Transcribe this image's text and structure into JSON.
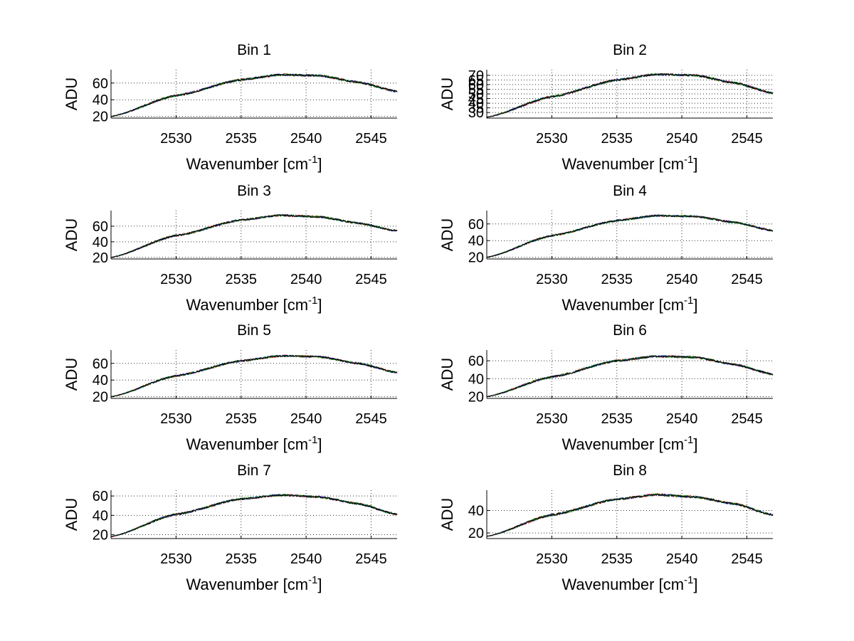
{
  "figure": {
    "background": "#ffffff"
  },
  "chart_data": [
    {
      "type": "line",
      "title": "Bin 1",
      "xlabel": "Wavenumber [cm",
      "xlabel_sup": "-1",
      "xlabel_end": "]",
      "ylabel": "ADU",
      "xlim": [
        2525,
        2547
      ],
      "ylim": [
        18,
        76
      ],
      "xticks": [
        2530,
        2535,
        2540,
        2545
      ],
      "xtick_labels": [
        "2530",
        "2535",
        "2540",
        "2545"
      ],
      "yticks": [
        20,
        40,
        60
      ],
      "ytick_labels": [
        "20",
        "40",
        "60"
      ],
      "grid": true,
      "series": [
        {
          "name": "red",
          "color": "#ff0000",
          "noise": 1.4,
          "seed": 11
        },
        {
          "name": "blue",
          "color": "#0000ff",
          "noise": 1.2,
          "seed": 12
        },
        {
          "name": "green",
          "color": "#00a000",
          "noise": 1.3,
          "seed": 13
        },
        {
          "name": "black",
          "color": "#000000",
          "noise": 1.1,
          "seed": 14
        }
      ],
      "trend": {
        "x": [
          2525,
          2530,
          2535,
          2538,
          2541,
          2544,
          2547
        ],
        "y": [
          20,
          45,
          64,
          70,
          69,
          61,
          50
        ]
      }
    },
    {
      "type": "line",
      "title": "Bin 2",
      "xlabel": "Wavenumber [cm",
      "xlabel_sup": "-1",
      "xlabel_end": "]",
      "ylabel": "ADU",
      "xlim": [
        2525,
        2547
      ],
      "ylim": [
        24,
        76
      ],
      "xticks": [
        2530,
        2535,
        2540,
        2545
      ],
      "xtick_labels": [
        "2530",
        "2535",
        "2540",
        "2545"
      ],
      "yticks": [
        30,
        35,
        40,
        45,
        50,
        55,
        60,
        65,
        70
      ],
      "ytick_labels": [
        "30",
        "35",
        "40",
        "45",
        "50",
        "55",
        "60",
        "65",
        "70"
      ],
      "grid": true,
      "series": [
        {
          "name": "red",
          "color": "#ff0000",
          "noise": 1.3,
          "seed": 21
        },
        {
          "name": "blue",
          "color": "#0000ff",
          "noise": 1.1,
          "seed": 22
        },
        {
          "name": "green",
          "color": "#00a000",
          "noise": 1.2,
          "seed": 23
        },
        {
          "name": "black",
          "color": "#000000",
          "noise": 1.0,
          "seed": 24
        }
      ],
      "trend": {
        "x": [
          2525,
          2530,
          2535,
          2538,
          2541,
          2544,
          2547
        ],
        "y": [
          25,
          47,
          65,
          71,
          70,
          62,
          51
        ]
      }
    },
    {
      "type": "line",
      "title": "Bin 3",
      "xlabel": "Wavenumber [cm",
      "xlabel_sup": "-1",
      "xlabel_end": "]",
      "ylabel": "ADU",
      "xlim": [
        2525,
        2547
      ],
      "ylim": [
        18,
        80
      ],
      "xticks": [
        2530,
        2535,
        2540,
        2545
      ],
      "xtick_labels": [
        "2530",
        "2535",
        "2540",
        "2545"
      ],
      "yticks": [
        20,
        40,
        60
      ],
      "ytick_labels": [
        "20",
        "40",
        "60"
      ],
      "grid": true,
      "series": [
        {
          "name": "red",
          "color": "#ff0000",
          "noise": 1.4,
          "seed": 31
        },
        {
          "name": "blue",
          "color": "#0000ff",
          "noise": 1.2,
          "seed": 32
        },
        {
          "name": "green",
          "color": "#00a000",
          "noise": 1.3,
          "seed": 33
        },
        {
          "name": "black",
          "color": "#000000",
          "noise": 1.1,
          "seed": 34
        }
      ],
      "trend": {
        "x": [
          2525,
          2530,
          2535,
          2538,
          2541,
          2544,
          2547
        ],
        "y": [
          20,
          48,
          68,
          74,
          72,
          64,
          54
        ]
      }
    },
    {
      "type": "line",
      "title": "Bin 4",
      "xlabel": "Wavenumber [cm",
      "xlabel_sup": "-1",
      "xlabel_end": "]",
      "ylabel": "ADU",
      "xlim": [
        2525,
        2547
      ],
      "ylim": [
        18,
        76
      ],
      "xticks": [
        2530,
        2535,
        2540,
        2545
      ],
      "xtick_labels": [
        "2530",
        "2535",
        "2540",
        "2545"
      ],
      "yticks": [
        20,
        40,
        60
      ],
      "ytick_labels": [
        "20",
        "40",
        "60"
      ],
      "grid": true,
      "series": [
        {
          "name": "red",
          "color": "#ff0000",
          "noise": 1.3,
          "seed": 41
        },
        {
          "name": "blue",
          "color": "#0000ff",
          "noise": 1.1,
          "seed": 42
        },
        {
          "name": "green",
          "color": "#00a000",
          "noise": 1.2,
          "seed": 43
        },
        {
          "name": "black",
          "color": "#000000",
          "noise": 1.0,
          "seed": 44
        }
      ],
      "trend": {
        "x": [
          2525,
          2530,
          2535,
          2538,
          2541,
          2544,
          2547
        ],
        "y": [
          20,
          46,
          64,
          70,
          69,
          62,
          52
        ]
      }
    },
    {
      "type": "line",
      "title": "Bin 5",
      "xlabel": "Wavenumber [cm",
      "xlabel_sup": "-1",
      "xlabel_end": "]",
      "ylabel": "ADU",
      "xlim": [
        2525,
        2547
      ],
      "ylim": [
        18,
        76
      ],
      "xticks": [
        2530,
        2535,
        2540,
        2545
      ],
      "xtick_labels": [
        "2530",
        "2535",
        "2540",
        "2545"
      ],
      "yticks": [
        20,
        40,
        60
      ],
      "ytick_labels": [
        "20",
        "40",
        "60"
      ],
      "grid": true,
      "series": [
        {
          "name": "red",
          "color": "#ff0000",
          "noise": 1.3,
          "seed": 51
        },
        {
          "name": "blue",
          "color": "#0000ff",
          "noise": 1.1,
          "seed": 52
        },
        {
          "name": "green",
          "color": "#00a000",
          "noise": 1.2,
          "seed": 53
        },
        {
          "name": "black",
          "color": "#000000",
          "noise": 1.0,
          "seed": 54
        }
      ],
      "trend": {
        "x": [
          2525,
          2530,
          2535,
          2538,
          2541,
          2544,
          2547
        ],
        "y": [
          20,
          45,
          63,
          69,
          68,
          60,
          49
        ]
      }
    },
    {
      "type": "line",
      "title": "Bin 6",
      "xlabel": "Wavenumber [cm",
      "xlabel_sup": "-1",
      "xlabel_end": "]",
      "ylabel": "ADU",
      "xlim": [
        2525,
        2547
      ],
      "ylim": [
        18,
        72
      ],
      "xticks": [
        2530,
        2535,
        2540,
        2545
      ],
      "xtick_labels": [
        "2530",
        "2535",
        "2540",
        "2545"
      ],
      "yticks": [
        20,
        40,
        60
      ],
      "ytick_labels": [
        "20",
        "40",
        "60"
      ],
      "grid": true,
      "series": [
        {
          "name": "red",
          "color": "#ff0000",
          "noise": 1.3,
          "seed": 61
        },
        {
          "name": "blue",
          "color": "#0000ff",
          "noise": 1.1,
          "seed": 62
        },
        {
          "name": "green",
          "color": "#00a000",
          "noise": 1.2,
          "seed": 63
        },
        {
          "name": "black",
          "color": "#000000",
          "noise": 1.0,
          "seed": 64
        }
      ],
      "trend": {
        "x": [
          2525,
          2530,
          2535,
          2538,
          2541,
          2544,
          2547
        ],
        "y": [
          20,
          42,
          60,
          65,
          64,
          56,
          45
        ]
      }
    },
    {
      "type": "line",
      "title": "Bin 7",
      "xlabel": "Wavenumber [cm",
      "xlabel_sup": "-1",
      "xlabel_end": "]",
      "ylabel": "ADU",
      "xlim": [
        2525,
        2547
      ],
      "ylim": [
        16,
        66
      ],
      "xticks": [
        2530,
        2535,
        2540,
        2545
      ],
      "xtick_labels": [
        "2530",
        "2535",
        "2540",
        "2545"
      ],
      "yticks": [
        20,
        40,
        60
      ],
      "ytick_labels": [
        "20",
        "40",
        "60"
      ],
      "grid": true,
      "series": [
        {
          "name": "red",
          "color": "#ff0000",
          "noise": 1.2,
          "seed": 71
        },
        {
          "name": "blue",
          "color": "#0000ff",
          "noise": 1.0,
          "seed": 72
        },
        {
          "name": "green",
          "color": "#00a000",
          "noise": 1.1,
          "seed": 73
        },
        {
          "name": "black",
          "color": "#000000",
          "noise": 0.9,
          "seed": 74
        }
      ],
      "trend": {
        "x": [
          2525,
          2530,
          2535,
          2538,
          2541,
          2544,
          2547
        ],
        "y": [
          18,
          41,
          57,
          61,
          59,
          52,
          41
        ]
      }
    },
    {
      "type": "line",
      "title": "Bin 8",
      "xlabel": "Wavenumber [cm",
      "xlabel_sup": "-1",
      "xlabel_end": "]",
      "ylabel": "ADU",
      "xlim": [
        2525,
        2547
      ],
      "ylim": [
        15,
        58
      ],
      "xticks": [
        2530,
        2535,
        2540,
        2545
      ],
      "xtick_labels": [
        "2530",
        "2535",
        "2540",
        "2545"
      ],
      "yticks": [
        20,
        40
      ],
      "ytick_labels": [
        "20",
        "40"
      ],
      "grid": true,
      "series": [
        {
          "name": "red",
          "color": "#ff0000",
          "noise": 1.1,
          "seed": 81
        },
        {
          "name": "blue",
          "color": "#0000ff",
          "noise": 0.9,
          "seed": 82
        },
        {
          "name": "green",
          "color": "#00a000",
          "noise": 1.0,
          "seed": 83
        },
        {
          "name": "black",
          "color": "#000000",
          "noise": 0.8,
          "seed": 84
        }
      ],
      "trend": {
        "x": [
          2525,
          2530,
          2535,
          2538,
          2541,
          2544,
          2547
        ],
        "y": [
          17,
          36,
          50,
          54,
          52,
          46,
          36
        ]
      }
    }
  ]
}
